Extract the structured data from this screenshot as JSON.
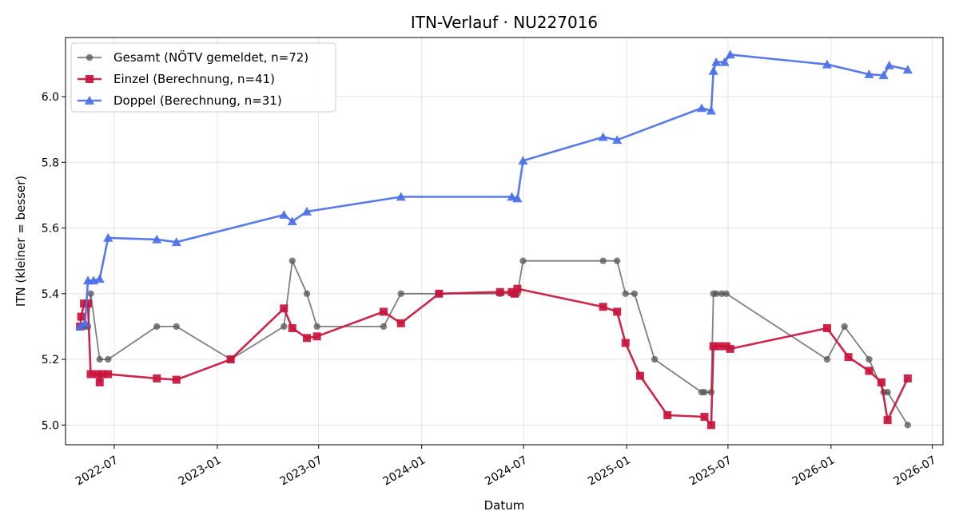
{
  "chart_data": {
    "type": "line",
    "title": "ITN-Verlauf · NU227016",
    "xlabel": "Datum",
    "ylabel": "ITN  (kleiner = besser)",
    "x_axis_type": "date",
    "xlim": [
      "2022-04-05",
      "2026-07-20"
    ],
    "ylim": [
      4.94,
      6.18
    ],
    "y_ticks": [
      5.0,
      5.2,
      5.4,
      5.6,
      5.8,
      6.0
    ],
    "x_ticks": [
      "2022-07-01",
      "2023-01-01",
      "2023-07-01",
      "2024-01-01",
      "2024-07-01",
      "2025-01-01",
      "2025-07-01",
      "2026-01-01",
      "2026-07-01"
    ],
    "x_tick_labels": [
      "2022-07",
      "2023-01",
      "2023-07",
      "2024-01",
      "2024-07",
      "2025-01",
      "2025-07",
      "2026-01",
      "2026-07"
    ],
    "grid": true,
    "legend_position": "top-left",
    "series": [
      {
        "name": "Gesamt (NÖTV gemeldet, n=72)",
        "color": "#555555",
        "marker": "circle",
        "points": [
          [
            "2022-05-01",
            5.3
          ],
          [
            "2022-05-05",
            5.3
          ],
          [
            "2022-05-10",
            5.3
          ],
          [
            "2022-05-15",
            5.3
          ],
          [
            "2022-05-20",
            5.4
          ],
          [
            "2022-06-05",
            5.2
          ],
          [
            "2022-06-20",
            5.2
          ],
          [
            "2022-09-15",
            5.3
          ],
          [
            "2022-10-20",
            5.3
          ],
          [
            "2023-01-25",
            5.2
          ],
          [
            "2023-04-30",
            5.3
          ],
          [
            "2023-05-15",
            5.5
          ],
          [
            "2023-06-10",
            5.4
          ],
          [
            "2023-06-28",
            5.3
          ],
          [
            "2023-10-25",
            5.3
          ],
          [
            "2023-11-25",
            5.4
          ],
          [
            "2024-02-01",
            5.4
          ],
          [
            "2024-05-20",
            5.4
          ],
          [
            "2024-06-10",
            5.4
          ],
          [
            "2024-06-15",
            5.4
          ],
          [
            "2024-06-20",
            5.4
          ],
          [
            "2024-06-30",
            5.5
          ],
          [
            "2024-11-20",
            5.5
          ],
          [
            "2024-12-15",
            5.5
          ],
          [
            "2024-12-30",
            5.4
          ],
          [
            "2025-01-15",
            5.4
          ],
          [
            "2025-02-20",
            5.2
          ],
          [
            "2025-05-15",
            5.1
          ],
          [
            "2025-05-20",
            5.1
          ],
          [
            "2025-06-01",
            5.1
          ],
          [
            "2025-06-05",
            5.4
          ],
          [
            "2025-06-10",
            5.4
          ],
          [
            "2025-06-20",
            5.4
          ],
          [
            "2025-06-28",
            5.4
          ],
          [
            "2025-12-25",
            5.2
          ],
          [
            "2026-01-25",
            5.3
          ],
          [
            "2026-03-10",
            5.2
          ],
          [
            "2026-04-05",
            5.1
          ],
          [
            "2026-04-12",
            5.1
          ],
          [
            "2026-05-18",
            5.0
          ]
        ]
      },
      {
        "name": "Einzel (Berechnung, n=41)",
        "color": "#c8143c",
        "marker": "square",
        "points": [
          [
            "2022-05-01",
            5.3
          ],
          [
            "2022-05-03",
            5.33
          ],
          [
            "2022-05-08",
            5.37
          ],
          [
            "2022-05-15",
            5.37
          ],
          [
            "2022-05-20",
            5.155
          ],
          [
            "2022-06-01",
            5.155
          ],
          [
            "2022-06-05",
            5.13
          ],
          [
            "2022-06-10",
            5.155
          ],
          [
            "2022-06-20",
            5.155
          ],
          [
            "2022-09-15",
            5.142
          ],
          [
            "2022-10-20",
            5.138
          ],
          [
            "2023-01-25",
            5.2
          ],
          [
            "2023-04-30",
            5.355
          ],
          [
            "2023-05-15",
            5.295
          ],
          [
            "2023-06-10",
            5.265
          ],
          [
            "2023-06-28",
            5.27
          ],
          [
            "2023-10-25",
            5.345
          ],
          [
            "2023-11-25",
            5.31
          ],
          [
            "2024-02-01",
            5.4
          ],
          [
            "2024-05-20",
            5.405
          ],
          [
            "2024-06-10",
            5.405
          ],
          [
            "2024-06-15",
            5.4
          ],
          [
            "2024-06-20",
            5.415
          ],
          [
            "2024-11-20",
            5.36
          ],
          [
            "2024-12-15",
            5.345
          ],
          [
            "2024-12-30",
            5.25
          ],
          [
            "2025-01-25",
            5.15
          ],
          [
            "2025-03-15",
            5.03
          ],
          [
            "2025-05-20",
            5.025
          ],
          [
            "2025-06-01",
            5.0
          ],
          [
            "2025-06-05",
            5.24
          ],
          [
            "2025-06-15",
            5.24
          ],
          [
            "2025-06-28",
            5.24
          ],
          [
            "2025-07-05",
            5.232
          ],
          [
            "2025-12-25",
            5.295
          ],
          [
            "2026-02-01",
            5.207
          ],
          [
            "2026-03-10",
            5.165
          ],
          [
            "2026-04-01",
            5.13
          ],
          [
            "2026-04-12",
            5.015
          ],
          [
            "2026-05-18",
            5.142
          ]
        ]
      },
      {
        "name": "Doppel (Berechnung, n=31)",
        "color": "#4a6fe8",
        "marker": "triangle",
        "points": [
          [
            "2022-05-01",
            5.3
          ],
          [
            "2022-05-10",
            5.31
          ],
          [
            "2022-05-15",
            5.44
          ],
          [
            "2022-05-25",
            5.44
          ],
          [
            "2022-06-05",
            5.445
          ],
          [
            "2022-06-20",
            5.57
          ],
          [
            "2022-09-15",
            5.565
          ],
          [
            "2022-10-20",
            5.557
          ],
          [
            "2023-04-30",
            5.64
          ],
          [
            "2023-05-15",
            5.62
          ],
          [
            "2023-06-10",
            5.65
          ],
          [
            "2023-11-25",
            5.695
          ],
          [
            "2024-06-10",
            5.695
          ],
          [
            "2024-06-20",
            5.69
          ],
          [
            "2024-06-30",
            5.805
          ],
          [
            "2024-11-20",
            5.877
          ],
          [
            "2024-12-15",
            5.868
          ],
          [
            "2025-05-15",
            5.965
          ],
          [
            "2025-06-01",
            5.957
          ],
          [
            "2025-06-05",
            6.078
          ],
          [
            "2025-06-10",
            6.105
          ],
          [
            "2025-06-25",
            6.105
          ],
          [
            "2025-07-05",
            6.128
          ],
          [
            "2025-12-25",
            6.098
          ],
          [
            "2026-03-10",
            6.068
          ],
          [
            "2026-04-05",
            6.065
          ],
          [
            "2026-04-15",
            6.095
          ],
          [
            "2026-05-18",
            6.082
          ]
        ]
      }
    ]
  }
}
